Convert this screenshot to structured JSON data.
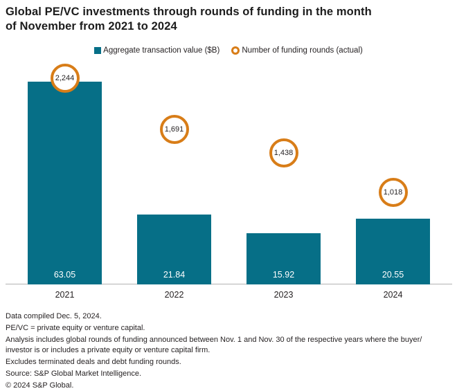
{
  "title": {
    "line1": "Global PE/VC investments through rounds of funding in the month",
    "line2": "of November from 2021 to 2024"
  },
  "legend": {
    "items": [
      {
        "label": "Aggregate transaction value ($B)",
        "marker": "square",
        "color": "#066f87"
      },
      {
        "label": "Number of funding rounds (actual)",
        "marker": "ring",
        "color": "#d87d18"
      }
    ]
  },
  "chart_data": {
    "type": "bar",
    "title": "Global PE/VC investments through rounds of funding in the month of November from 2021 to 2024",
    "categories": [
      "2021",
      "2022",
      "2023",
      "2024"
    ],
    "series": [
      {
        "name": "Aggregate transaction value ($B)",
        "type": "bar",
        "values": [
          63.05,
          21.84,
          15.92,
          20.55
        ],
        "labels": [
          "63.05",
          "21.84",
          "15.92",
          "20.55"
        ],
        "color": "#066f87"
      },
      {
        "name": "Number of funding rounds (actual)",
        "type": "circled-point",
        "values": [
          2244,
          1691,
          1438,
          1018
        ],
        "labels": [
          "2,244",
          "1,691",
          "1,438",
          "1,018"
        ],
        "color": "#d87d18"
      }
    ],
    "xlabel": "",
    "ylabel": "",
    "value_labels": "inside-bar-bottom",
    "legend_position": "top-center",
    "grid": false,
    "y_axis_visible": false,
    "x_axis_line": true
  },
  "footer": {
    "lines": [
      "Data compiled Dec. 5, 2024.",
      "PE/VC = private equity or venture capital.",
      "Analysis includes global rounds of funding announced between Nov. 1 and Nov. 30 of the respective years where the buyer/",
      "investor is or includes a private equity or venture capital firm.",
      "Excludes terminated deals and debt funding rounds.",
      "Source: S&P Global Market Intelligence.",
      "© 2024 S&P Global."
    ]
  },
  "colors": {
    "bar_teal": "#066f87",
    "ring_orange": "#d87d18",
    "text_dark": "#231f20",
    "axis_line": "#b1b1b1",
    "background": "#ffffff"
  }
}
